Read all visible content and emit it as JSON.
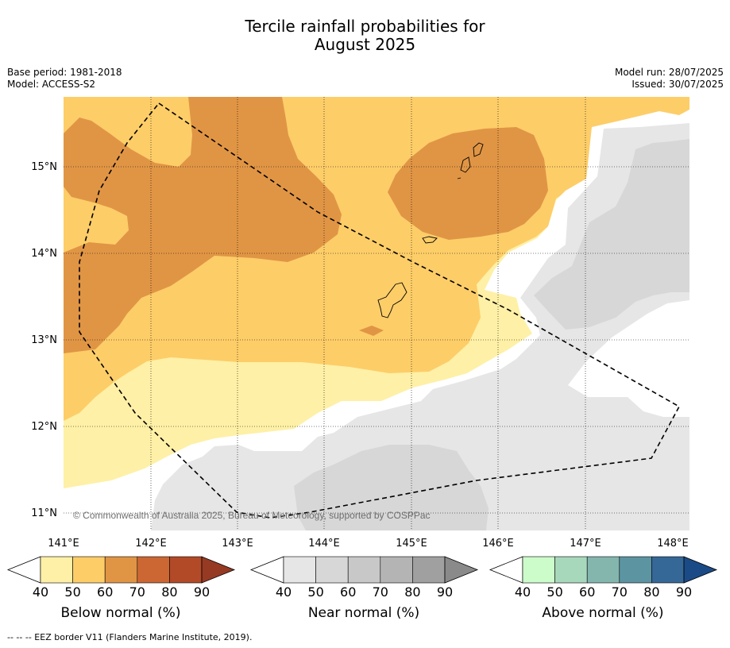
{
  "title": {
    "line1": "Tercile rainfall probabilities for",
    "line2": "August 2025"
  },
  "meta": {
    "base_period": "Base period: 1981-2018",
    "model": "Model: ACCESS-S2",
    "model_run": "Model run: 28/07/2025",
    "issued": "Issued: 30/07/2025"
  },
  "map": {
    "lat_labels": [
      "15°N",
      "14°N",
      "13°N",
      "12°N",
      "11°N"
    ],
    "lon_labels": [
      "141°E",
      "142°E",
      "143°E",
      "144°E",
      "145°E",
      "146°E",
      "147°E",
      "148°E"
    ],
    "copyright": "© Commonwealth of Australia 2025, Bureau of Meteorology, supported by COSPPac",
    "colors": {
      "below_40": "#fef0a6",
      "below_50": "#fdcd68",
      "below_60": "#e09545",
      "near_40": "#e6e6e6",
      "near_50": "#d7d7d7",
      "ocean": "#ffffff"
    }
  },
  "colorbars": [
    {
      "label": "Below normal (%)",
      "ticks": [
        "40",
        "50",
        "60",
        "70",
        "80",
        "90"
      ],
      "colors": [
        "#fef0a6",
        "#fdcd68",
        "#e09545",
        "#cc6733",
        "#b24a28",
        "#963a23"
      ]
    },
    {
      "label": "Near normal (%)",
      "ticks": [
        "40",
        "50",
        "60",
        "70",
        "80",
        "90"
      ],
      "colors": [
        "#e6e6e6",
        "#d7d7d7",
        "#c8c8c8",
        "#b4b4b4",
        "#a0a0a0",
        "#8a8a8a"
      ]
    },
    {
      "label": "Above normal (%)",
      "ticks": [
        "40",
        "50",
        "60",
        "70",
        "80",
        "90"
      ],
      "colors": [
        "#cdfccb",
        "#a8d8bc",
        "#84b6ae",
        "#5c94a2",
        "#356896",
        "#1b4b86"
      ]
    }
  ],
  "footer": "--  --  -- EEZ border V11 (Flanders Marine Institute, 2019)."
}
